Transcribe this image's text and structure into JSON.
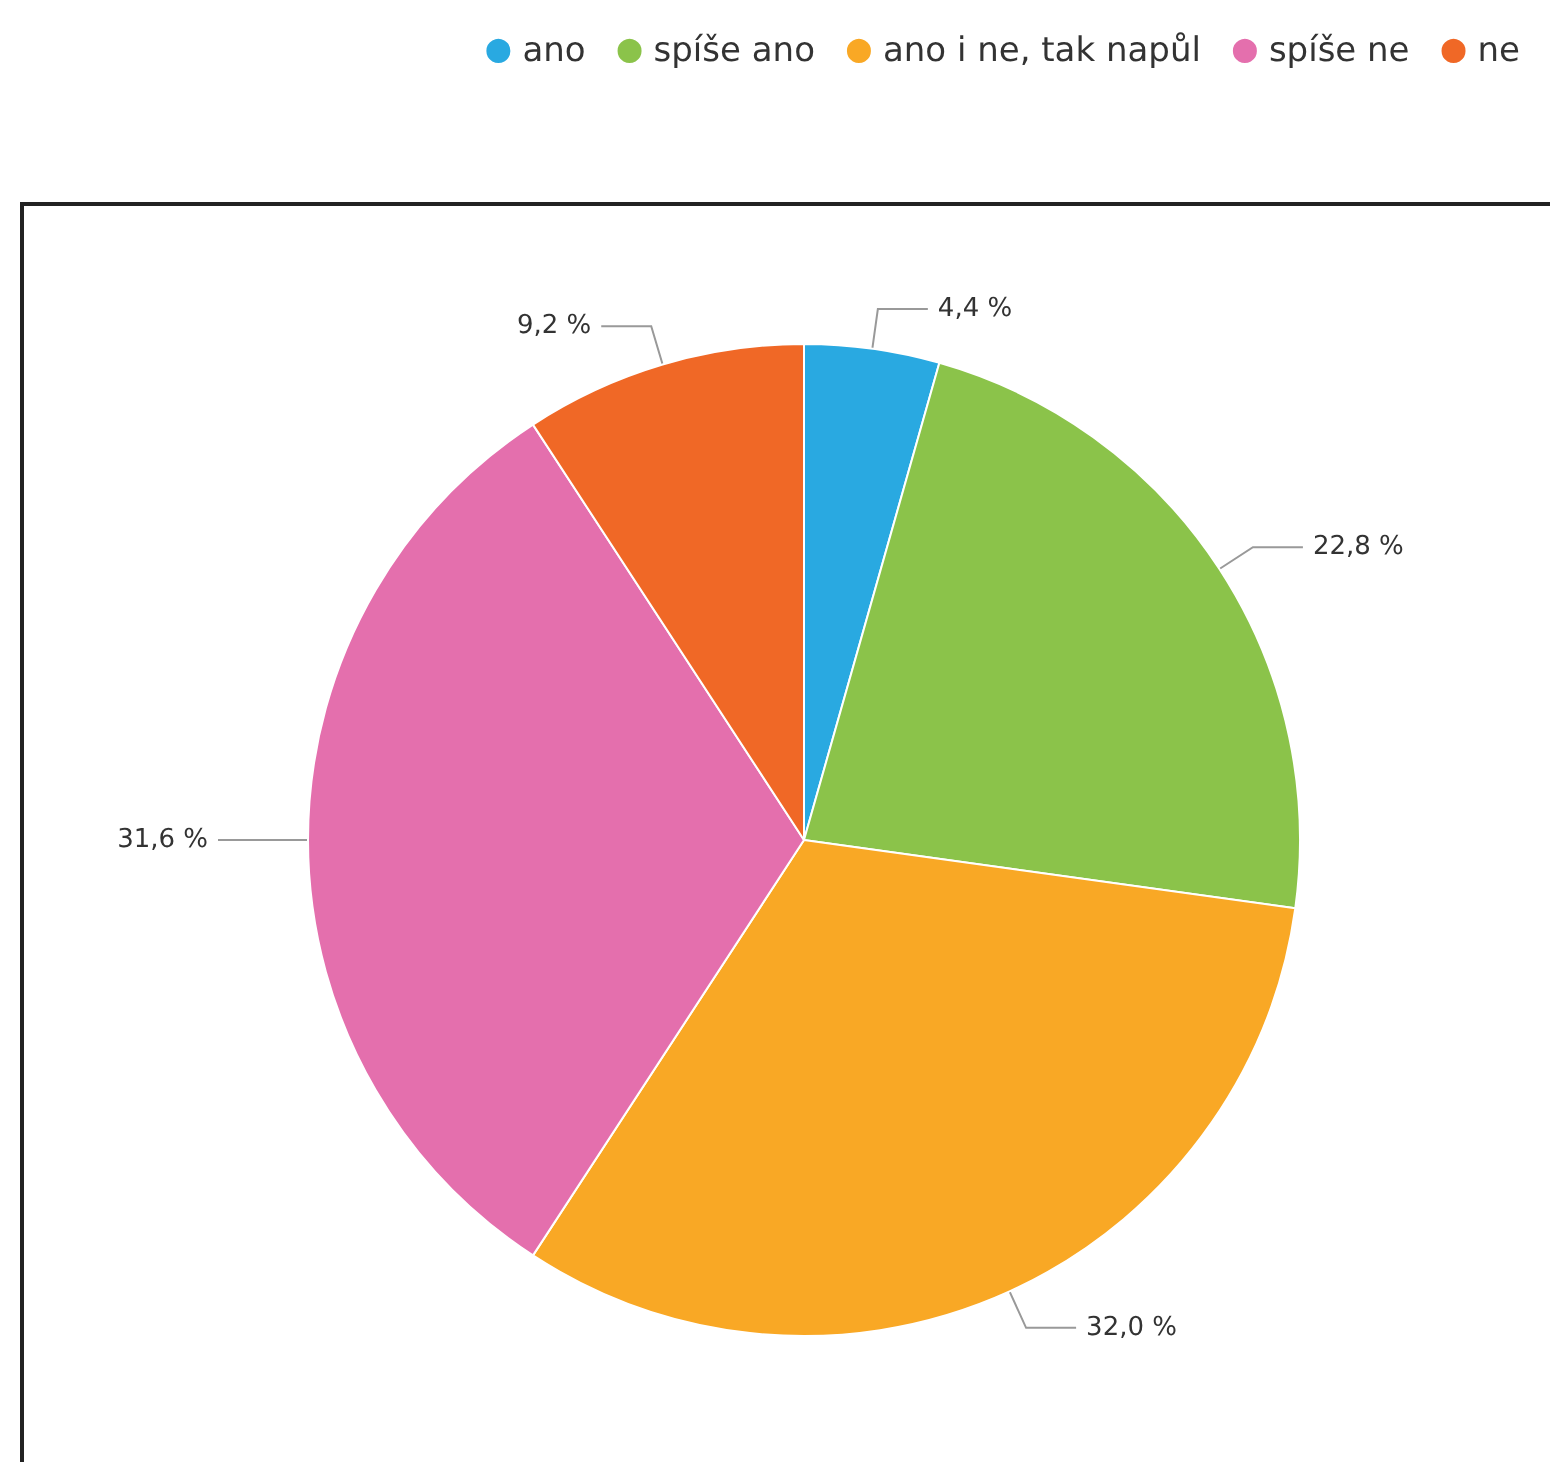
{
  "chart_data": {
    "type": "pie",
    "categories": [
      "ano",
      "spíše ano",
      "ano i ne, tak napůl",
      "spíše ne",
      "ne"
    ],
    "values": [
      4.4,
      22.8,
      32.0,
      31.6,
      9.2
    ],
    "colors": [
      "#29a9e1",
      "#8bc34a",
      "#f9a825",
      "#e46fad",
      "#f06826"
    ],
    "value_labels": [
      "4,4 %",
      "22,8 %",
      "32,0 %",
      "31,6 %",
      "9,2 %"
    ],
    "legend": "top right"
  }
}
